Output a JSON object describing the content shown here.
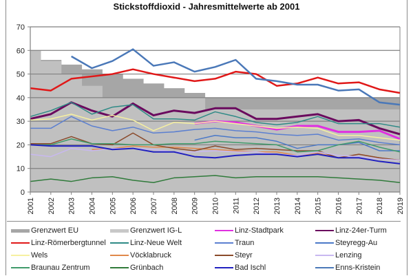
{
  "chart_data": {
    "type": "line",
    "title": "Stickstoffdioxid - Jahresmittelwerte ab 2001",
    "xlabel": "",
    "ylabel": "",
    "ylim": [
      0,
      70
    ],
    "yticks": [
      "0",
      "10",
      "20",
      "30",
      "40",
      "50",
      "60",
      "70"
    ],
    "grid": "horizontal",
    "legend_placement": "bottom",
    "categories": [
      "2001",
      "2002",
      "2003",
      "2004",
      "2005",
      "2006",
      "2007",
      "2008",
      "2009",
      "2010",
      "2011",
      "2012",
      "2013",
      "2014",
      "2015",
      "2016",
      "2017",
      "2018",
      "2019"
    ],
    "limits": [
      {
        "name": "Grenzwert EU",
        "type": "area-step",
        "color": "#a6a6a6",
        "values": [
          60,
          56,
          54,
          52,
          50,
          48,
          46,
          44,
          42,
          40,
          40,
          40,
          40,
          40,
          40,
          40,
          40,
          40,
          40
        ]
      },
      {
        "name": "Grenzwert IG-L",
        "type": "area-step",
        "color": "#c0c0c0",
        "values": [
          60,
          55.5,
          50,
          45,
          40,
          40,
          40,
          40,
          40,
          35,
          35,
          35,
          35,
          35,
          35,
          35,
          35,
          35,
          35
        ]
      }
    ],
    "series": [
      {
        "name": "Linz-Stadtpark",
        "color": "#e030e0",
        "width": 3,
        "values": [
          null,
          null,
          null,
          null,
          null,
          null,
          null,
          null,
          29,
          30,
          29.5,
          28,
          26.5,
          28,
          28,
          25.5,
          25.5,
          26,
          22.5
        ]
      },
      {
        "name": "Linz-24er-Turm",
        "color": "#6a0a5e",
        "width": 3,
        "values": [
          31,
          33,
          38,
          34.5,
          32,
          37.5,
          32.5,
          34.5,
          33.5,
          35.5,
          35.5,
          31,
          31,
          32,
          33,
          30,
          30.5,
          27,
          24.5
        ]
      },
      {
        "name": "Linz-Römerbergtunnel",
        "color": "#e01818",
        "width": 2.5,
        "values": [
          44,
          43,
          48,
          49,
          50,
          52,
          50,
          48.5,
          47,
          48,
          51,
          50,
          45,
          46,
          48.5,
          46,
          46.5,
          43.5,
          42
        ]
      },
      {
        "name": "Linz-Neue Welt",
        "color": "#2e8a86",
        "width": 1.5,
        "values": [
          32,
          34.5,
          38,
          33,
          36,
          37,
          31,
          31,
          30.5,
          34,
          32,
          29.5,
          28.5,
          29.5,
          32,
          29,
          29,
          29,
          27.5
        ]
      },
      {
        "name": "Traun",
        "color": "#5b7fd0",
        "width": 1.5,
        "values": [
          27,
          27,
          32,
          28,
          26,
          27.5,
          25,
          25.5,
          26.5,
          27,
          26,
          25.5,
          24.5,
          24,
          24.5,
          22,
          22.5,
          21,
          20
        ]
      },
      {
        "name": "Steyregg-Au",
        "color": "#4a78c8",
        "width": 1.5,
        "values": [
          null,
          null,
          null,
          null,
          null,
          null,
          null,
          null,
          22,
          24,
          23,
          23,
          21.5,
          18.5,
          20,
          20,
          21,
          17.5,
          17.5
        ]
      },
      {
        "name": "Wels",
        "color": "#f6f0a0",
        "width": 1.5,
        "values": [
          30.5,
          31,
          33,
          30.5,
          32.5,
          30.5,
          26,
          29.5,
          29,
          30,
          29,
          28,
          27,
          27.5,
          27,
          24,
          24,
          23,
          22
        ]
      },
      {
        "name": "Vöcklabruck",
        "color": "#e0884a",
        "width": 1.5,
        "values": [
          null,
          null,
          null,
          18,
          18.5,
          19.5,
          19,
          19,
          18.5,
          18,
          17.5,
          17,
          17,
          15.5,
          16.5,
          14.5,
          16,
          14.5,
          13.5
        ]
      },
      {
        "name": "Steyr",
        "color": "#8a4a2a",
        "width": 1.5,
        "values": [
          20.5,
          20.5,
          23.5,
          20.5,
          20,
          25,
          20,
          18.5,
          17.5,
          19.5,
          18,
          18.5,
          18,
          17.5,
          17.5,
          14.5,
          16,
          14.5,
          13.5
        ]
      },
      {
        "name": "Lenzing",
        "color": "#c8b8f0",
        "width": 1.5,
        "values": [
          16,
          15,
          18.5,
          17.5,
          18.5,
          18.5,
          18,
          17,
          17,
          17.5,
          17,
          17,
          16,
          15.5,
          17,
          15.5,
          15,
          14,
          13.5
        ]
      },
      {
        "name": "Braunau Zentrum",
        "color": "#3f9a6a",
        "width": 1.5,
        "values": [
          20,
          20,
          22.5,
          20.5,
          20.5,
          20,
          20,
          20.5,
          20.5,
          21.5,
          21,
          20.5,
          20,
          17,
          17.5,
          20,
          21.5,
          19,
          17
        ]
      },
      {
        "name": "Grünbach",
        "color": "#2f7a3a",
        "width": 1.5,
        "values": [
          4.5,
          5.5,
          4.5,
          6,
          6.5,
          5,
          4,
          6,
          6.5,
          7,
          6,
          6.5,
          6.5,
          6.5,
          6.5,
          6,
          5.5,
          5,
          4
        ]
      },
      {
        "name": "Bad Ischl",
        "color": "#2020c0",
        "width": 2,
        "values": [
          20,
          19.5,
          19.5,
          19.5,
          18,
          18.5,
          17,
          17,
          15,
          14.5,
          15.5,
          16,
          16,
          15,
          16,
          14.5,
          14.5,
          13,
          12
        ]
      },
      {
        "name": "Enns-Kristein",
        "color": "#4a78b8",
        "width": 2.5,
        "values": [
          null,
          null,
          57.5,
          52.5,
          55.5,
          60.5,
          53.5,
          55,
          51,
          53,
          56,
          48,
          47,
          45.5,
          45.5,
          43,
          43.5,
          38,
          37
        ]
      }
    ],
    "legend": [
      {
        "label": "Grenzwert EU",
        "color": "#a6a6a6",
        "kind": "area"
      },
      {
        "label": "Grenzwert IG-L",
        "color": "#c8c8c8",
        "kind": "area"
      },
      {
        "label": "Linz-Stadtpark",
        "color": "#e030e0",
        "kind": "line"
      },
      {
        "label": "Linz-24er-Turm",
        "color": "#6a0a5e",
        "kind": "line"
      },
      {
        "label": "Linz-Römerbergtunnel",
        "color": "#e01818",
        "kind": "line"
      },
      {
        "label": "Linz-Neue Welt",
        "color": "#2e8a86",
        "kind": "line"
      },
      {
        "label": "Traun",
        "color": "#5b7fd0",
        "kind": "line"
      },
      {
        "label": "Steyregg-Au",
        "color": "#4a78c8",
        "kind": "line"
      },
      {
        "label": "Wels",
        "color": "#f6f0a0",
        "kind": "line"
      },
      {
        "label": "Vöcklabruck",
        "color": "#e0884a",
        "kind": "line"
      },
      {
        "label": "Steyr",
        "color": "#8a4a2a",
        "kind": "line"
      },
      {
        "label": "Lenzing",
        "color": "#c8b8f0",
        "kind": "line"
      },
      {
        "label": "Braunau Zentrum",
        "color": "#3f9a6a",
        "kind": "line"
      },
      {
        "label": "Grünbach",
        "color": "#2f7a3a",
        "kind": "line"
      },
      {
        "label": "Bad Ischl",
        "color": "#2020c0",
        "kind": "line"
      },
      {
        "label": "Enns-Kristein",
        "color": "#4a78b8",
        "kind": "line"
      }
    ]
  }
}
